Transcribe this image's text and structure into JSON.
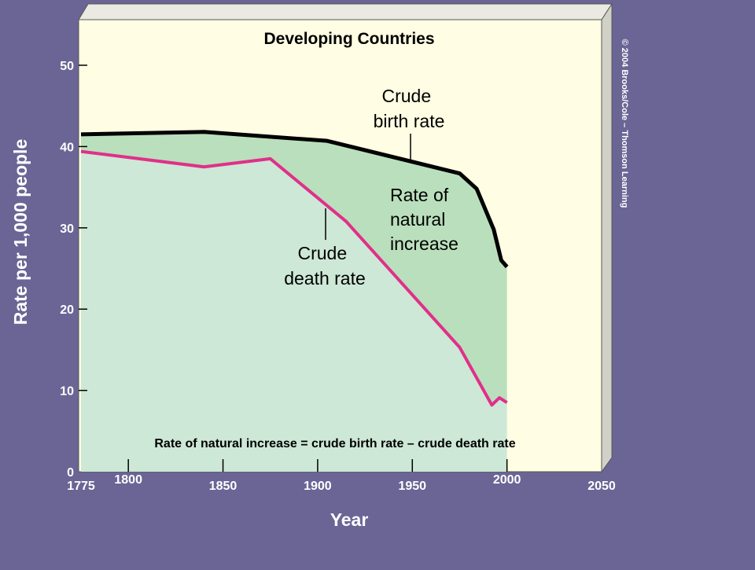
{
  "chart_data": {
    "type": "line",
    "title": "Developing Countries",
    "xlabel": "Year",
    "ylabel": "Rate per 1,000 people",
    "x_ticks": [
      1775,
      1800,
      1850,
      1900,
      1950,
      2000,
      2050
    ],
    "y_ticks": [
      0,
      10,
      20,
      30,
      40,
      50
    ],
    "xlim": [
      1775,
      2050
    ],
    "ylim": [
      0,
      55
    ],
    "series": [
      {
        "name": "Crude birth rate",
        "x": [
          1775,
          1840,
          1905,
          1975,
          1984,
          1993,
          1997,
          2000
        ],
        "y": [
          41.5,
          41.8,
          40.7,
          36.7,
          34.8,
          29.8,
          26.0,
          25.2
        ]
      },
      {
        "name": "Crude death rate",
        "x": [
          1775,
          1840,
          1875,
          1915,
          1975,
          1992,
          1996,
          2000
        ],
        "y": [
          39.4,
          37.5,
          38.5,
          30.8,
          15.3,
          8.2,
          9.1,
          8.5
        ]
      }
    ],
    "area_label": "Rate of natural increase",
    "annotations": {
      "birth_rate": [
        "Crude",
        "birth rate"
      ],
      "death_rate": [
        "Crude",
        "death rate"
      ],
      "natural_increase": [
        "Rate of",
        "natural",
        "increase"
      ],
      "formula": "Rate of natural increase = crude birth rate – crude death rate"
    },
    "grid": false,
    "legend": "none"
  },
  "copyright": "© 2004 Brooks/Cole – Thomson Learning",
  "colors": {
    "background": "#6a6595",
    "panel": "#fffde3",
    "birth_line": "#000000",
    "death_line": "#e0308a",
    "increase_fill": "#badfbc",
    "below_death_fill": "#cde8d6"
  }
}
